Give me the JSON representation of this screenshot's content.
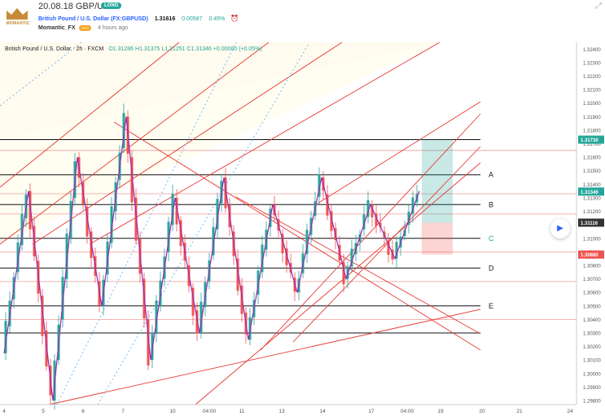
{
  "header": {
    "title": "20.08.18 GBP/USD",
    "badge": "LONG",
    "symbol": "British Pound / U.S. Dollar (FX:GBPUSD)",
    "last_price": "1.31616",
    "change": "0.00587",
    "change_pct": "0.45%",
    "author": "Momantic_FX",
    "author_tag": "PRO",
    "posted": "4 hours ago",
    "logo_text": "MOMANTIC"
  },
  "chart_legend": {
    "symbol": "British Pound / U.S. Dollar · 2h · FXCM",
    "ohlc": "O1.31286 H1.31375 L1.31251 C1.31346 +0.00060 (+0.05%)"
  },
  "colors": {
    "up": "#26a69a",
    "down": "#ef5350",
    "zigzag": "#9c27b0",
    "pitchfork": "#e53935",
    "fib": "#ef9a9a",
    "target": "#26a69a",
    "stop": "#ef5350"
  },
  "y_axis_ticks": [
    "1.32400",
    "1.32300",
    "1.32200",
    "1.32100",
    "1.32000",
    "1.31900",
    "1.31800",
    "1.31700",
    "1.31600",
    "1.31500",
    "1.31400",
    "1.31300",
    "1.31200",
    "1.31100",
    "1.31000",
    "1.30900",
    "1.30800",
    "1.30700",
    "1.30600",
    "1.30500",
    "1.30400",
    "1.30300",
    "1.30200",
    "1.30100",
    "1.30000",
    "1.29900",
    "1.29800"
  ],
  "price_tags": [
    {
      "value": "1.31730",
      "kind": "target"
    },
    {
      "value": "1.31346",
      "kind": "current"
    },
    {
      "value": "1.31116",
      "kind": "entry"
    },
    {
      "value": "1.30880",
      "kind": "stop"
    }
  ],
  "x_axis_ticks": [
    "4",
    "5",
    "6",
    "7",
    "10",
    "04:00",
    "11",
    "13",
    "14",
    "17",
    "04:00",
    "19",
    "20",
    "21",
    "24"
  ],
  "level_labels": [
    "A",
    "B",
    "C",
    "D",
    "E"
  ],
  "chart_data": {
    "type": "candlestick",
    "timeframe": "2h",
    "ylim": [
      1.2977,
      1.3245
    ],
    "zigzag_pivots": [
      1.3015,
      1.3135,
      1.298,
      1.316,
      1.305,
      1.319,
      1.301,
      1.313,
      1.303,
      1.3145,
      1.3025,
      1.3125,
      1.306,
      1.3145,
      1.307,
      1.3125,
      1.3085,
      1.3135
    ],
    "horizontal_levels": [
      1.3173,
      1.3147,
      1.3125,
      1.31,
      1.3078,
      1.305,
      1.303
    ],
    "target_zone": [
      1.31116,
      1.3173
    ],
    "stop_zone": [
      1.3088,
      1.31116
    ]
  }
}
